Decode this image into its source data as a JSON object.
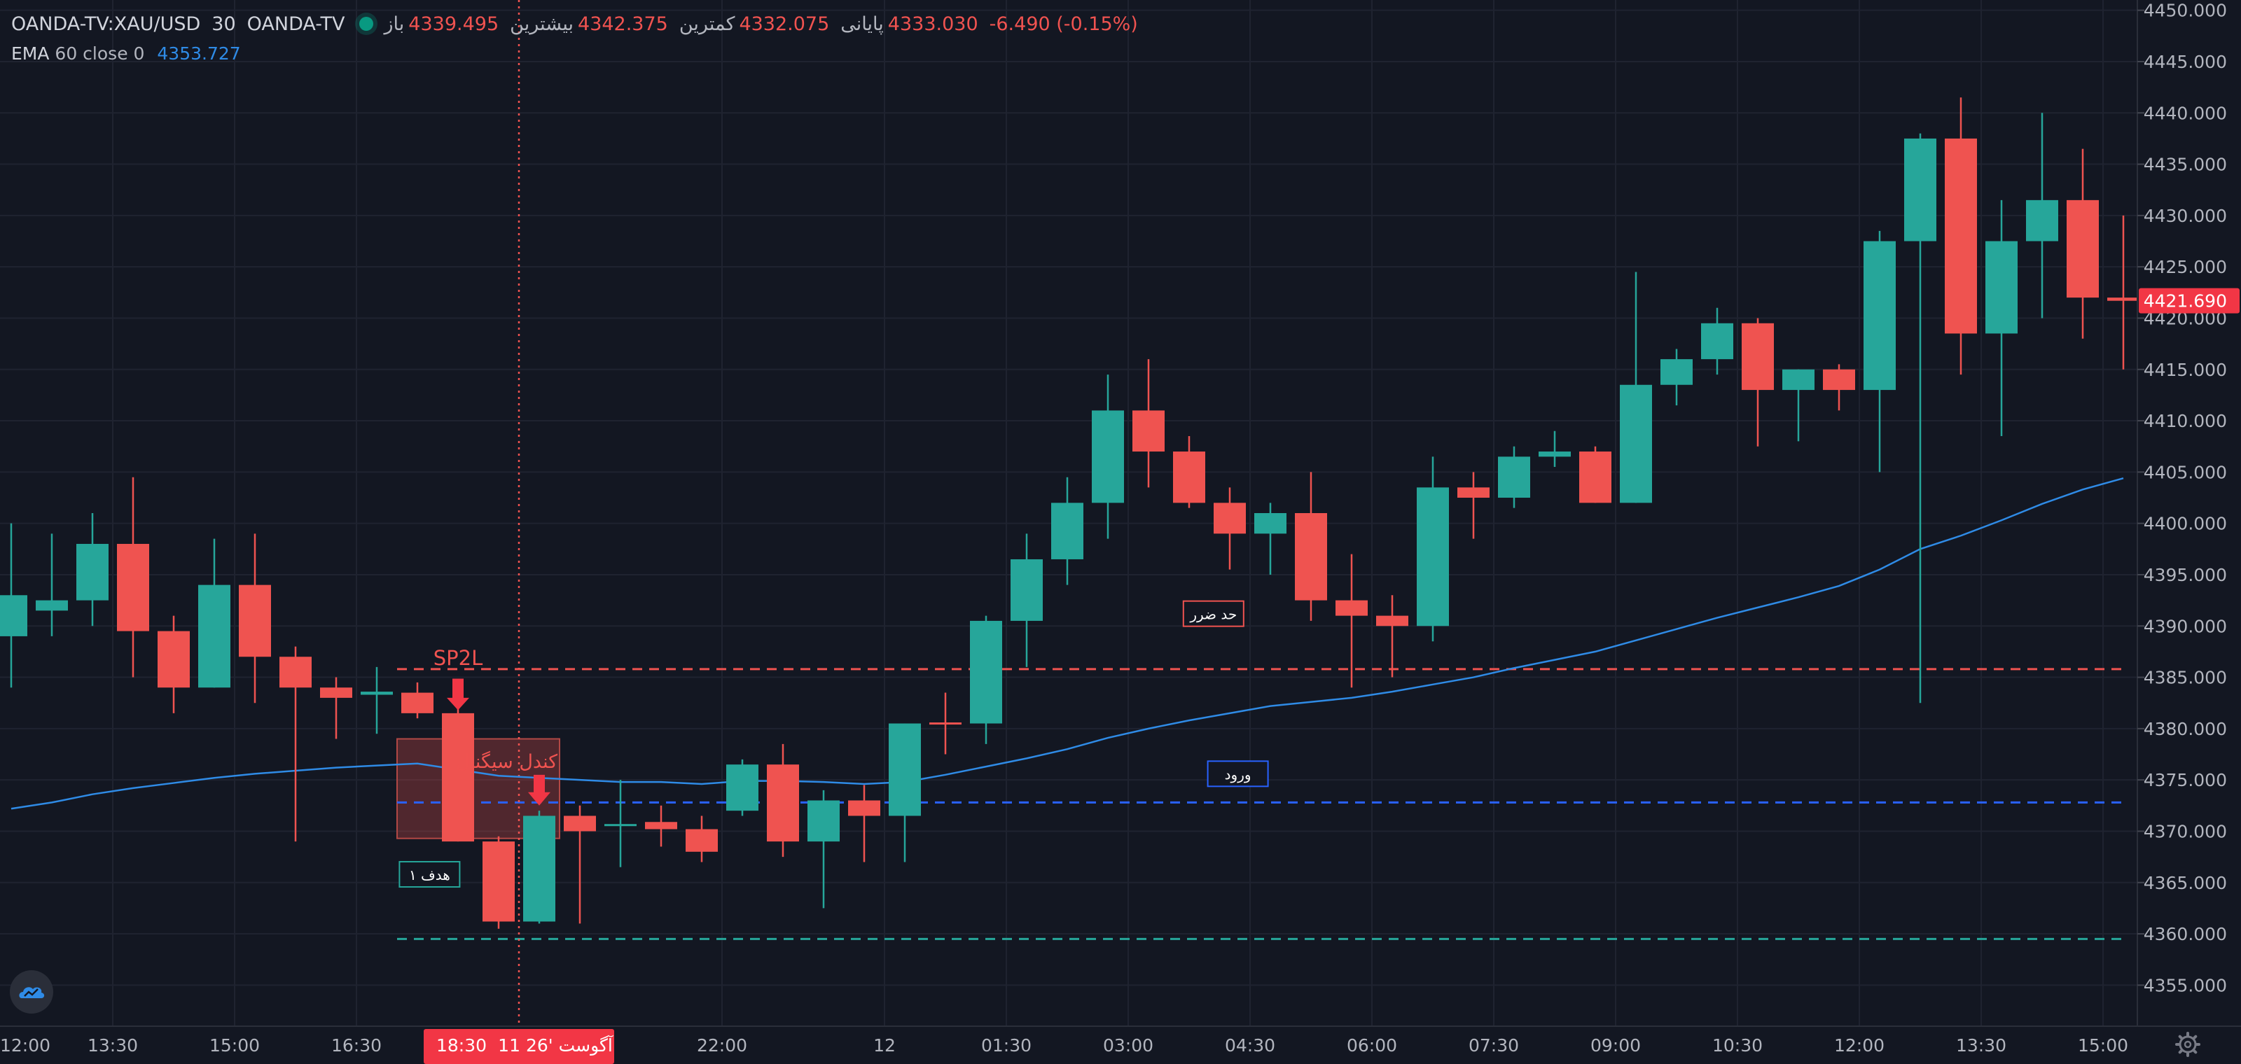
{
  "header": {
    "symbol": "OANDA-TV:XAU/USD",
    "interval": "30",
    "exchange": "OANDA-TV",
    "open_label": "باز",
    "open_value": "4339.495",
    "high_label": "بیشترین",
    "high_value": "4342.375",
    "low_label": "کمترین",
    "low_value": "4332.075",
    "close_label": "پایانی",
    "close_value": "4333.030",
    "change": "-6.490 (-0.15%)"
  },
  "indicator": {
    "name": "EMA",
    "params": "60 close 0",
    "value": "4353.727"
  },
  "chart_data": {
    "type": "candlestick",
    "symbol": "XAU/USD",
    "interval": "30",
    "y_axis": {
      "ylim": [
        4351,
        4451
      ],
      "ticks": [
        "4355.000",
        "4360.000",
        "4365.000",
        "4370.000",
        "4375.000",
        "4380.000",
        "4385.000",
        "4390.000",
        "4395.000",
        "4400.000",
        "4405.000",
        "4410.000",
        "4415.000",
        "4420.000",
        "4425.000",
        "4430.000",
        "4435.000",
        "4440.000",
        "4445.000",
        "4450.000"
      ]
    },
    "x_axis": {
      "tick_labels": [
        {
          "label": "12:00",
          "bar": -0.5
        },
        {
          "label": "13:30",
          "bar": 2.5
        },
        {
          "label": "15:00",
          "bar": 5.5
        },
        {
          "label": "16:30",
          "bar": 8.5
        },
        {
          "label": "22:00",
          "bar": 17.5
        },
        {
          "label": "12",
          "bar": 21.5
        },
        {
          "label": "01:30",
          "bar": 24.5
        },
        {
          "label": "03:00",
          "bar": 27.5
        },
        {
          "label": "04:30",
          "bar": 30.5
        },
        {
          "label": "06:00",
          "bar": 33.5
        },
        {
          "label": "07:30",
          "bar": 36.5
        },
        {
          "label": "09:00",
          "bar": 39.5
        },
        {
          "label": "10:30",
          "bar": 42.5
        },
        {
          "label": "12:00",
          "bar": 45.5
        },
        {
          "label": "13:30",
          "bar": 48.5
        },
        {
          "label": "15:00",
          "bar": 51.5
        }
      ],
      "crosshair_label": "11 آگوست '26",
      "crosshair_time": "18:30",
      "crosshair_bar": 12.5
    },
    "candles": [
      {
        "o": 4389.0,
        "h": 4400.0,
        "l": 4384.0,
        "c": 4393.0
      },
      {
        "o": 4391.5,
        "h": 4399.0,
        "l": 4389.0,
        "c": 4392.5
      },
      {
        "o": 4392.5,
        "h": 4401.0,
        "l": 4390.0,
        "c": 4398.0
      },
      {
        "o": 4398.0,
        "h": 4404.5,
        "l": 4385.0,
        "c": 4389.5
      },
      {
        "o": 4389.5,
        "h": 4391.0,
        "l": 4381.5,
        "c": 4384.0
      },
      {
        "o": 4384.0,
        "h": 4398.5,
        "l": 4384.0,
        "c": 4394.0
      },
      {
        "o": 4394.0,
        "h": 4399.0,
        "l": 4382.5,
        "c": 4387.0
      },
      {
        "o": 4387.0,
        "h": 4388.0,
        "l": 4369.0,
        "c": 4384.0
      },
      {
        "o": 4384.0,
        "h": 4385.0,
        "l": 4379.0,
        "c": 4383.0
      },
      {
        "o": 4383.3,
        "h": 4386.0,
        "l": 4379.5,
        "c": 4383.6
      },
      {
        "o": 4383.5,
        "h": 4384.5,
        "l": 4381.0,
        "c": 4381.5
      },
      {
        "o": 4381.5,
        "h": 4382.0,
        "l": 4369.0,
        "c": 4369.0
      },
      {
        "o": 4369.0,
        "h": 4369.5,
        "l": 4360.5,
        "c": 4361.2
      },
      {
        "o": 4361.2,
        "h": 4372.0,
        "l": 4361.0,
        "c": 4371.5
      },
      {
        "o": 4371.5,
        "h": 4372.5,
        "l": 4361.0,
        "c": 4370.0
      },
      {
        "o": 4370.5,
        "h": 4375.0,
        "l": 4366.5,
        "c": 4370.7
      },
      {
        "o": 4370.9,
        "h": 4372.5,
        "l": 4368.5,
        "c": 4370.2
      },
      {
        "o": 4370.2,
        "h": 4371.5,
        "l": 4367.0,
        "c": 4368.0
      },
      {
        "o": 4372.0,
        "h": 4377.0,
        "l": 4371.5,
        "c": 4376.5
      },
      {
        "o": 4376.5,
        "h": 4378.5,
        "l": 4367.5,
        "c": 4369.0
      },
      {
        "o": 4369.0,
        "h": 4374.0,
        "l": 4362.5,
        "c": 4373.0
      },
      {
        "o": 4373.0,
        "h": 4374.5,
        "l": 4367.0,
        "c": 4371.5
      },
      {
        "o": 4371.5,
        "h": 4380.5,
        "l": 4367.0,
        "c": 4380.5
      },
      {
        "o": 4380.6,
        "h": 4383.5,
        "l": 4377.5,
        "c": 4380.4
      },
      {
        "o": 4380.5,
        "h": 4391.0,
        "l": 4378.5,
        "c": 4390.5
      },
      {
        "o": 4390.5,
        "h": 4399.0,
        "l": 4386.0,
        "c": 4396.5
      },
      {
        "o": 4396.5,
        "h": 4404.5,
        "l": 4394.0,
        "c": 4402.0
      },
      {
        "o": 4402.0,
        "h": 4414.5,
        "l": 4398.5,
        "c": 4411.0
      },
      {
        "o": 4411.0,
        "h": 4416.0,
        "l": 4403.5,
        "c": 4407.0
      },
      {
        "o": 4407.0,
        "h": 4408.5,
        "l": 4401.5,
        "c": 4402.0
      },
      {
        "o": 4402.0,
        "h": 4403.5,
        "l": 4395.5,
        "c": 4399.0
      },
      {
        "o": 4399.0,
        "h": 4402.0,
        "l": 4395.0,
        "c": 4401.0
      },
      {
        "o": 4401.0,
        "h": 4405.0,
        "l": 4390.5,
        "c": 4392.5
      },
      {
        "o": 4392.5,
        "h": 4397.0,
        "l": 4384.0,
        "c": 4391.0
      },
      {
        "o": 4391.0,
        "h": 4393.0,
        "l": 4385.0,
        "c": 4390.0
      },
      {
        "o": 4390.0,
        "h": 4406.5,
        "l": 4388.5,
        "c": 4403.5
      },
      {
        "o": 4403.5,
        "h": 4405.0,
        "l": 4398.5,
        "c": 4402.5
      },
      {
        "o": 4402.5,
        "h": 4407.5,
        "l": 4401.5,
        "c": 4406.5
      },
      {
        "o": 4406.5,
        "h": 4409.0,
        "l": 4405.5,
        "c": 4407.0
      },
      {
        "o": 4407.0,
        "h": 4407.5,
        "l": 4402.0,
        "c": 4402.0
      },
      {
        "o": 4402.0,
        "h": 4424.5,
        "l": 4402.0,
        "c": 4413.5
      },
      {
        "o": 4413.5,
        "h": 4417.0,
        "l": 4411.5,
        "c": 4416.0
      },
      {
        "o": 4416.0,
        "h": 4421.0,
        "l": 4414.5,
        "c": 4419.5
      },
      {
        "o": 4419.5,
        "h": 4420.0,
        "l": 4407.5,
        "c": 4413.0
      },
      {
        "o": 4413.0,
        "h": 4415.0,
        "l": 4408.0,
        "c": 4415.0
      },
      {
        "o": 4415.0,
        "h": 4415.5,
        "l": 4411.0,
        "c": 4413.0
      },
      {
        "o": 4413.0,
        "h": 4428.5,
        "l": 4405.0,
        "c": 4427.5
      },
      {
        "o": 4427.5,
        "h": 4438.0,
        "l": 4382.5,
        "c": 4437.5
      },
      {
        "o": 4437.5,
        "h": 4441.5,
        "l": 4414.5,
        "c": 4418.5
      },
      {
        "o": 4418.5,
        "h": 4431.5,
        "l": 4408.5,
        "c": 4427.5
      },
      {
        "o": 4427.5,
        "h": 4440.0,
        "l": 4420.0,
        "c": 4431.5
      },
      {
        "o": 4431.5,
        "h": 4436.5,
        "l": 4418.0,
        "c": 4422.0
      },
      {
        "o": 4422.0,
        "h": 4430.0,
        "l": 4415.0,
        "c": 4421.69
      }
    ],
    "ema": {
      "name": "EMA 60 close 0",
      "color": "#2f8be6",
      "values": [
        4372.2,
        4372.8,
        4373.6,
        4374.2,
        4374.7,
        4375.2,
        4375.6,
        4375.9,
        4376.2,
        4376.4,
        4376.6,
        4376.0,
        4375.4,
        4375.2,
        4375.0,
        4374.8,
        4374.8,
        4374.6,
        4374.9,
        4374.9,
        4374.8,
        4374.6,
        4374.8,
        4375.5,
        4376.3,
        4377.1,
        4378.0,
        4379.1,
        4380.0,
        4380.8,
        4381.5,
        4382.2,
        4382.6,
        4383.0,
        4383.6,
        4384.3,
        4385.0,
        4385.9,
        4386.7,
        4387.5,
        4388.6,
        4389.7,
        4390.8,
        4391.8,
        4392.8,
        4393.9,
        4395.5,
        4397.5,
        4398.8,
        4400.3,
        4401.9,
        4403.3,
        4404.4
      ]
    },
    "current_price": "4421.690",
    "current_price_color": "#f23645",
    "up_color": "#26a69a",
    "down_color": "#ef5350",
    "horizontal_levels": [
      {
        "price": 4385.8,
        "color": "#ef5350",
        "label": "حد ضرر"
      },
      {
        "price": 4372.8,
        "color": "#2962ff",
        "label": "ورود"
      },
      {
        "price": 4359.5,
        "color": "#26a69a",
        "label": "هدف ۱"
      }
    ],
    "annotations": {
      "signal_text": "SP2L",
      "signal_candle_label": "کندل سیگنال",
      "signal_box": {
        "bar_from": 9.5,
        "bar_to": 13.5,
        "price_top": 4379.0,
        "price_bottom": 4369.3
      }
    }
  }
}
